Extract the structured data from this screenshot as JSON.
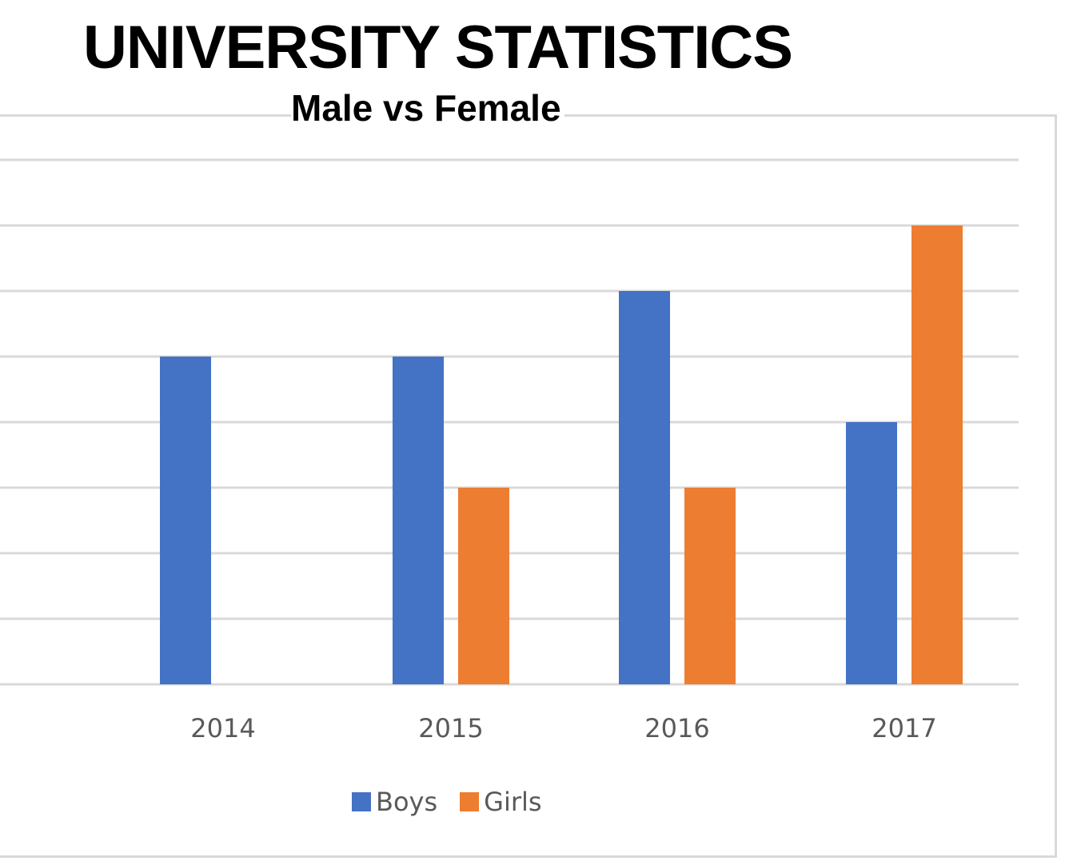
{
  "title": "UNIVERSITY STATISTICS",
  "subtitle": "Male vs Female",
  "colors": {
    "boys": "#4472c4",
    "girls": "#ed7d31",
    "grid": "#d9d9d9",
    "axis_text": "#595959"
  },
  "chart_data": {
    "type": "bar",
    "title": "UNIVERSITY STATISTICS",
    "subtitle": "Male vs Female",
    "categories": [
      "2014",
      "2015",
      "2016",
      "2017"
    ],
    "series": [
      {
        "name": "Boys",
        "color": "#4472c4",
        "values": [
          5,
          5,
          6,
          4
        ]
      },
      {
        "name": "Girls",
        "color": "#ed7d31",
        "values": [
          0,
          3,
          3,
          7
        ]
      }
    ],
    "ylim": [
      0,
      8
    ],
    "grid": true,
    "legend_position": "bottom"
  }
}
